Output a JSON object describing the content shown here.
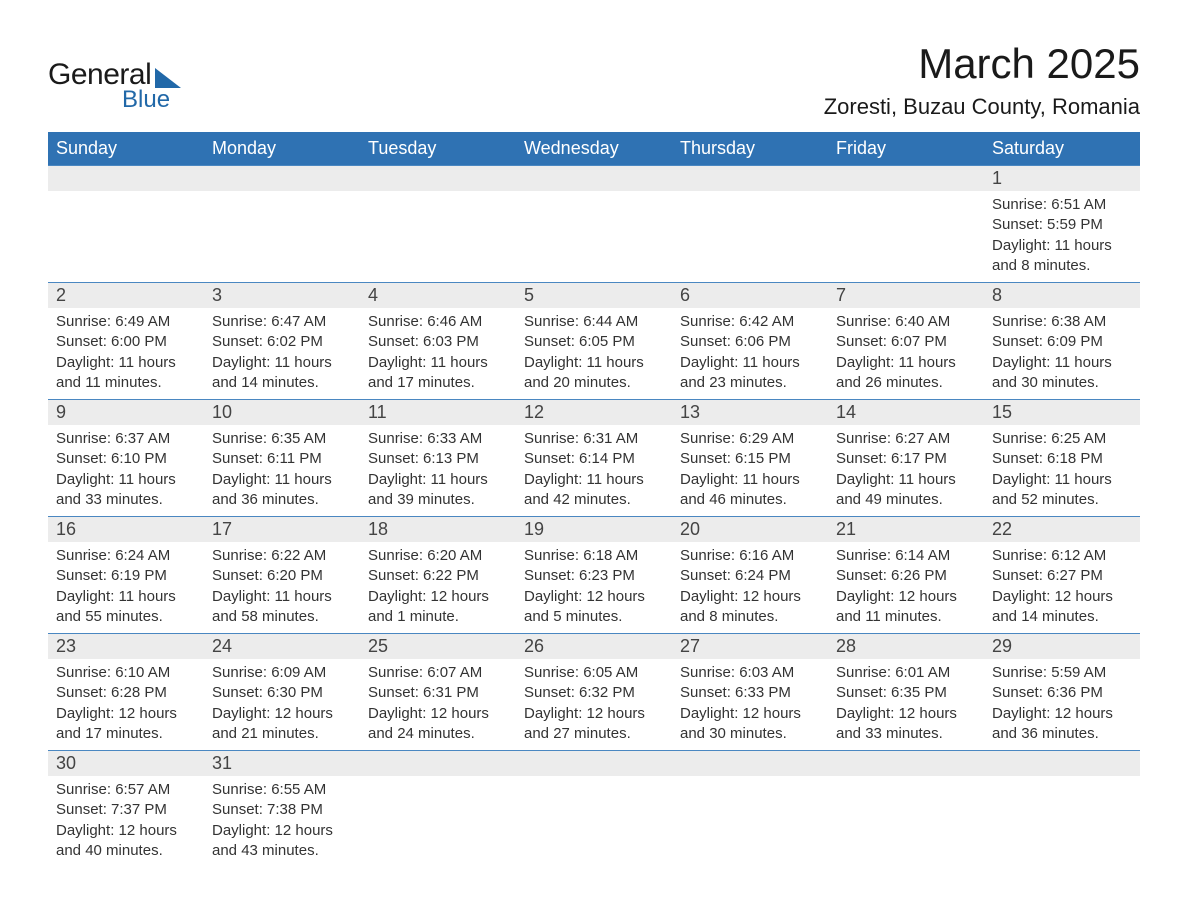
{
  "logo": {
    "line1": "General",
    "line2": "Blue",
    "brand_color": "#2168a8"
  },
  "title": {
    "month_year": "March 2025",
    "location": "Zoresti, Buzau County, Romania"
  },
  "colors": {
    "header_bg": "#2f72b3",
    "header_text": "#ffffff",
    "daynum_bg": "#ececec",
    "row_divider": "#4a87c1",
    "body_text": "#333333",
    "page_bg": "#ffffff"
  },
  "typography": {
    "title_fontsize_pt": 32,
    "location_fontsize_pt": 17,
    "header_fontsize_pt": 14,
    "daynum_fontsize_pt": 14,
    "detail_fontsize_pt": 11
  },
  "calendar": {
    "type": "table",
    "columns": [
      "Sunday",
      "Monday",
      "Tuesday",
      "Wednesday",
      "Thursday",
      "Friday",
      "Saturday"
    ],
    "weeks": [
      [
        null,
        null,
        null,
        null,
        null,
        null,
        {
          "n": "1",
          "sr": "6:51 AM",
          "ss": "5:59 PM",
          "dl": "11 hours and 8 minutes."
        }
      ],
      [
        {
          "n": "2",
          "sr": "6:49 AM",
          "ss": "6:00 PM",
          "dl": "11 hours and 11 minutes."
        },
        {
          "n": "3",
          "sr": "6:47 AM",
          "ss": "6:02 PM",
          "dl": "11 hours and 14 minutes."
        },
        {
          "n": "4",
          "sr": "6:46 AM",
          "ss": "6:03 PM",
          "dl": "11 hours and 17 minutes."
        },
        {
          "n": "5",
          "sr": "6:44 AM",
          "ss": "6:05 PM",
          "dl": "11 hours and 20 minutes."
        },
        {
          "n": "6",
          "sr": "6:42 AM",
          "ss": "6:06 PM",
          "dl": "11 hours and 23 minutes."
        },
        {
          "n": "7",
          "sr": "6:40 AM",
          "ss": "6:07 PM",
          "dl": "11 hours and 26 minutes."
        },
        {
          "n": "8",
          "sr": "6:38 AM",
          "ss": "6:09 PM",
          "dl": "11 hours and 30 minutes."
        }
      ],
      [
        {
          "n": "9",
          "sr": "6:37 AM",
          "ss": "6:10 PM",
          "dl": "11 hours and 33 minutes."
        },
        {
          "n": "10",
          "sr": "6:35 AM",
          "ss": "6:11 PM",
          "dl": "11 hours and 36 minutes."
        },
        {
          "n": "11",
          "sr": "6:33 AM",
          "ss": "6:13 PM",
          "dl": "11 hours and 39 minutes."
        },
        {
          "n": "12",
          "sr": "6:31 AM",
          "ss": "6:14 PM",
          "dl": "11 hours and 42 minutes."
        },
        {
          "n": "13",
          "sr": "6:29 AM",
          "ss": "6:15 PM",
          "dl": "11 hours and 46 minutes."
        },
        {
          "n": "14",
          "sr": "6:27 AM",
          "ss": "6:17 PM",
          "dl": "11 hours and 49 minutes."
        },
        {
          "n": "15",
          "sr": "6:25 AM",
          "ss": "6:18 PM",
          "dl": "11 hours and 52 minutes."
        }
      ],
      [
        {
          "n": "16",
          "sr": "6:24 AM",
          "ss": "6:19 PM",
          "dl": "11 hours and 55 minutes."
        },
        {
          "n": "17",
          "sr": "6:22 AM",
          "ss": "6:20 PM",
          "dl": "11 hours and 58 minutes."
        },
        {
          "n": "18",
          "sr": "6:20 AM",
          "ss": "6:22 PM",
          "dl": "12 hours and 1 minute."
        },
        {
          "n": "19",
          "sr": "6:18 AM",
          "ss": "6:23 PM",
          "dl": "12 hours and 5 minutes."
        },
        {
          "n": "20",
          "sr": "6:16 AM",
          "ss": "6:24 PM",
          "dl": "12 hours and 8 minutes."
        },
        {
          "n": "21",
          "sr": "6:14 AM",
          "ss": "6:26 PM",
          "dl": "12 hours and 11 minutes."
        },
        {
          "n": "22",
          "sr": "6:12 AM",
          "ss": "6:27 PM",
          "dl": "12 hours and 14 minutes."
        }
      ],
      [
        {
          "n": "23",
          "sr": "6:10 AM",
          "ss": "6:28 PM",
          "dl": "12 hours and 17 minutes."
        },
        {
          "n": "24",
          "sr": "6:09 AM",
          "ss": "6:30 PM",
          "dl": "12 hours and 21 minutes."
        },
        {
          "n": "25",
          "sr": "6:07 AM",
          "ss": "6:31 PM",
          "dl": "12 hours and 24 minutes."
        },
        {
          "n": "26",
          "sr": "6:05 AM",
          "ss": "6:32 PM",
          "dl": "12 hours and 27 minutes."
        },
        {
          "n": "27",
          "sr": "6:03 AM",
          "ss": "6:33 PM",
          "dl": "12 hours and 30 minutes."
        },
        {
          "n": "28",
          "sr": "6:01 AM",
          "ss": "6:35 PM",
          "dl": "12 hours and 33 minutes."
        },
        {
          "n": "29",
          "sr": "5:59 AM",
          "ss": "6:36 PM",
          "dl": "12 hours and 36 minutes."
        }
      ],
      [
        {
          "n": "30",
          "sr": "6:57 AM",
          "ss": "7:37 PM",
          "dl": "12 hours and 40 minutes."
        },
        {
          "n": "31",
          "sr": "6:55 AM",
          "ss": "7:38 PM",
          "dl": "12 hours and 43 minutes."
        },
        null,
        null,
        null,
        null,
        null
      ]
    ],
    "labels": {
      "sunrise": "Sunrise:",
      "sunset": "Sunset:",
      "daylight": "Daylight:"
    }
  }
}
